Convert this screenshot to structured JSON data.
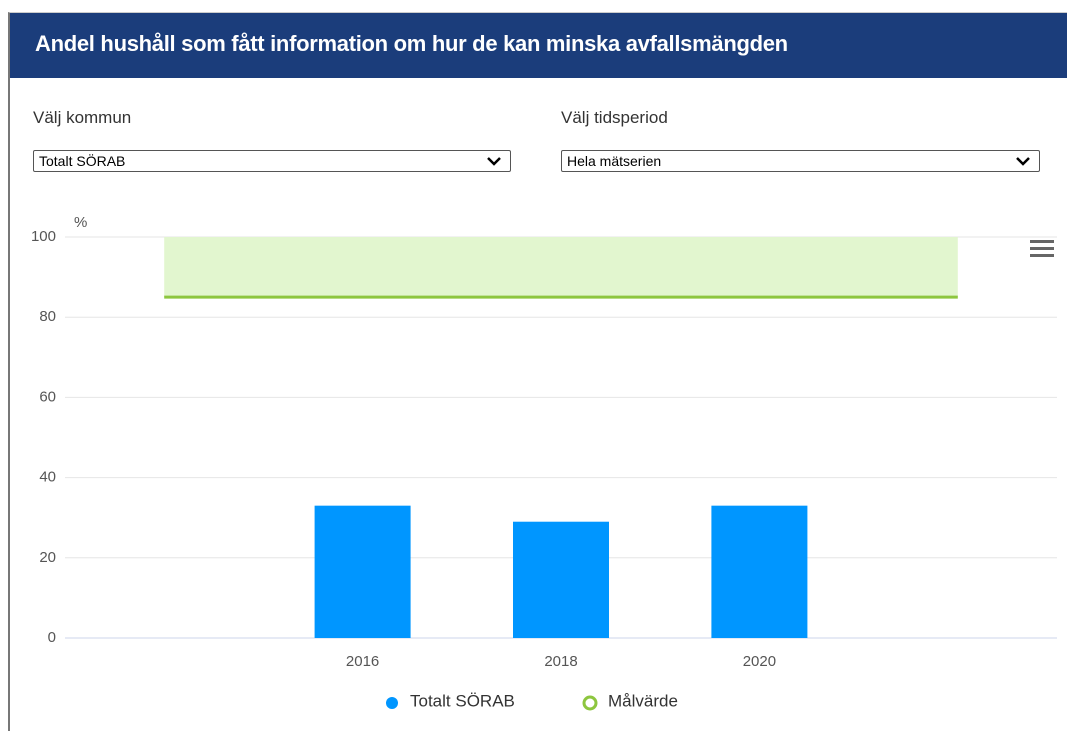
{
  "header": {
    "title": "Andel hushåll som fått information om hur de kan minska avfallsmängden"
  },
  "controls": [
    {
      "label": "Välj kommun",
      "value": "Totalt SÖRAB"
    },
    {
      "label": "Välj tidsperiod",
      "value": "Hela mätserien"
    }
  ],
  "chart_data": {
    "type": "bar",
    "ylabel": "%",
    "xlim": [
      2013,
      2023
    ],
    "xticks": [
      2016,
      2018,
      2020
    ],
    "ylim": [
      0,
      100
    ],
    "yticks": [
      0,
      20,
      40,
      60,
      80,
      100
    ],
    "grid": true,
    "series": [
      {
        "name": "Totalt SÖRAB",
        "color": "#0096ff",
        "type": "bar",
        "x": [
          2016,
          2018,
          2020
        ],
        "values": [
          33,
          29,
          33
        ]
      },
      {
        "name": "Målvärde",
        "color": "#8dc63f",
        "type": "line",
        "x": [
          2014,
          2022
        ],
        "values": [
          85,
          85
        ],
        "band_to": 100,
        "band_color": "#e2f6cf"
      }
    ]
  }
}
